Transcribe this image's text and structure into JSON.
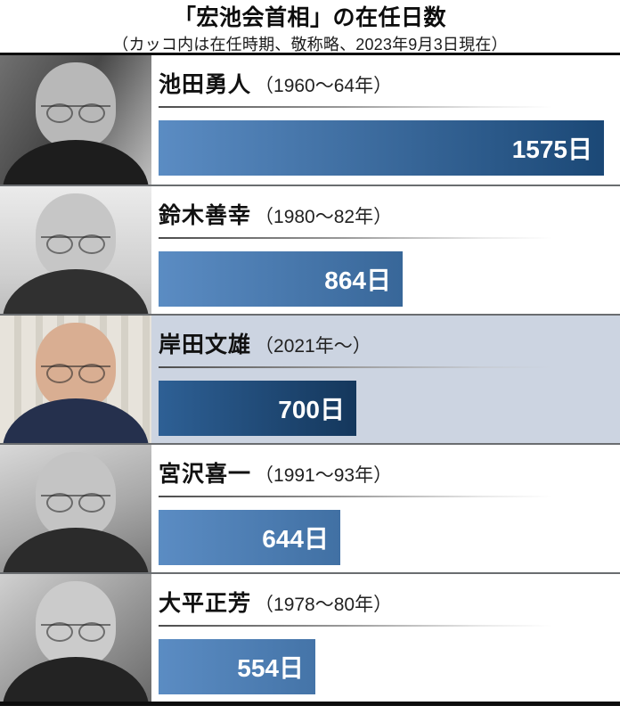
{
  "header": {
    "title": "「宏池会首相」の在任日数",
    "subtitle": "（カッコ内は在任時期、敬称略、2023年9月3日現在）"
  },
  "chart_data": {
    "type": "bar",
    "orientation": "horizontal",
    "title": "「宏池会首相」の在任日数",
    "note": "（カッコ内は在任時期、敬称略、2023年9月3日現在）",
    "unit": "日",
    "xlim": [
      0,
      1575
    ],
    "rows": [
      {
        "name": "池田勇人",
        "period": "（1960～64年）",
        "days": 1575,
        "label": "1575日",
        "highlighted": false,
        "photo": "bw"
      },
      {
        "name": "鈴木善幸",
        "period": "（1980～82年）",
        "days": 864,
        "label": "864日",
        "highlighted": false,
        "photo": "bw"
      },
      {
        "name": "岸田文雄",
        "period": "（2021年～）",
        "days": 700,
        "label": "700日",
        "highlighted": true,
        "photo": "color"
      },
      {
        "name": "宮沢喜一",
        "period": "（1991～93年）",
        "days": 644,
        "label": "644日",
        "highlighted": false,
        "photo": "bw"
      },
      {
        "name": "大平正芳",
        "period": "（1978～80年）",
        "days": 554,
        "label": "554日",
        "highlighted": false,
        "photo": "bw"
      }
    ],
    "colors": {
      "bar_gradient_left": "#5b8cc3",
      "bar_gradient_right": "#1b4876",
      "highlight_bar_gradient_left": "#2e6095",
      "highlight_bar_gradient_right": "#14375c",
      "highlight_row_bg": "#ccd4e1",
      "row_bg": "#ffffff",
      "value_text": "#ffffff"
    },
    "legend": false,
    "grid": false
  }
}
